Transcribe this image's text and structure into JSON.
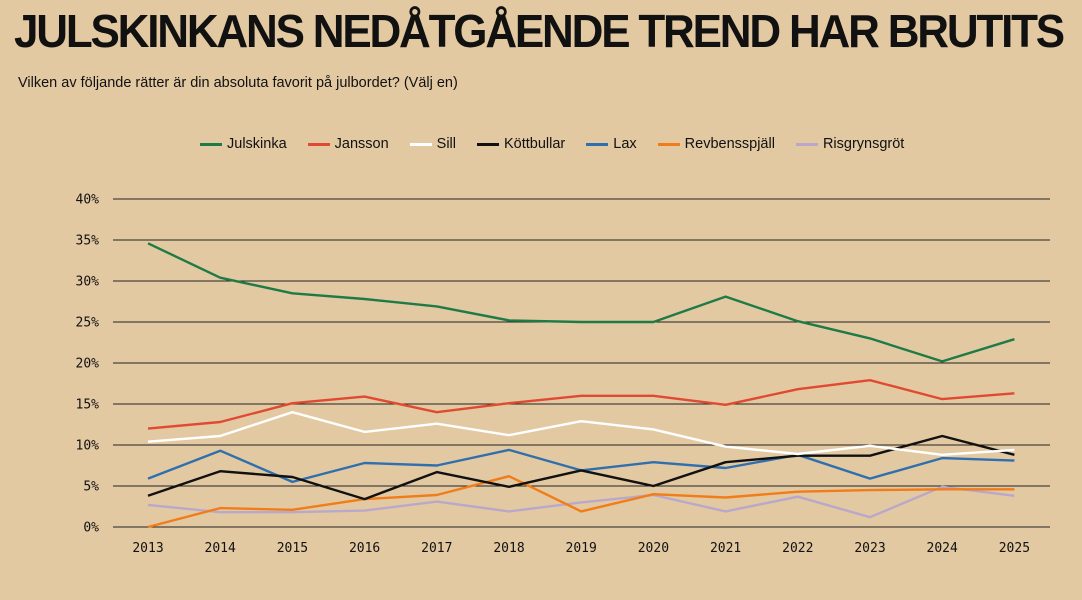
{
  "title": "JULSKINKANS NEDÅTGÅENDE TREND HAR BRUTITS",
  "subtitle": "Vilken av följande rätter är din absoluta favorit på julbordet? (Välj en)",
  "chart_data": {
    "type": "line",
    "title": "JULSKINKANS NEDÅTGÅENDE TREND HAR BRUTITS",
    "subtitle": "Vilken av följande rätter är din absoluta favorit på julbordet? (Välj en)",
    "x": [
      "2013",
      "2014",
      "2015",
      "2016",
      "2017",
      "2018",
      "2019",
      "2020",
      "2021",
      "2022",
      "2023",
      "2024",
      "2025"
    ],
    "ylim": [
      0,
      40
    ],
    "yticks": [
      0,
      5,
      10,
      15,
      20,
      25,
      30,
      35,
      40
    ],
    "ytick_labels": [
      "0%",
      "5%",
      "10%",
      "15%",
      "20%",
      "25%",
      "30%",
      "35%",
      "40%"
    ],
    "grid": "horizontal",
    "legend_position": "top",
    "series": [
      {
        "name": "Julskinka",
        "color": "#1E7B45",
        "values": [
          34.6,
          30.4,
          28.5,
          27.8,
          26.9,
          25.2,
          25.0,
          25.0,
          28.1,
          25.1,
          23.0,
          20.2,
          22.9
        ]
      },
      {
        "name": "Jansson",
        "color": "#E04A33",
        "values": [
          12.0,
          12.8,
          15.1,
          15.9,
          14.0,
          15.1,
          16.0,
          16.0,
          14.9,
          16.8,
          17.9,
          15.6,
          16.3
        ]
      },
      {
        "name": "Sill",
        "color": "#FFFFFF",
        "values": [
          10.4,
          11.1,
          14.0,
          11.6,
          12.6,
          11.2,
          12.9,
          11.9,
          9.8,
          8.9,
          9.9,
          8.8,
          9.4
        ]
      },
      {
        "name": "Köttbullar",
        "color": "#111111",
        "values": [
          3.8,
          6.8,
          6.1,
          3.4,
          6.7,
          4.9,
          6.9,
          5.0,
          7.9,
          8.7,
          8.7,
          11.1,
          8.8
        ]
      },
      {
        "name": "Lax",
        "color": "#2F6FAE",
        "values": [
          5.9,
          9.3,
          5.5,
          7.8,
          7.5,
          9.4,
          6.9,
          7.9,
          7.2,
          8.8,
          5.9,
          8.4,
          8.1
        ]
      },
      {
        "name": "Revbensspjäll",
        "color": "#F07D1A",
        "values": [
          0.0,
          2.3,
          2.1,
          3.4,
          3.9,
          6.2,
          1.9,
          4.0,
          3.6,
          4.3,
          4.5,
          4.6,
          4.6
        ]
      },
      {
        "name": "Risgrynsgröt",
        "color": "#B9A8C9",
        "values": [
          2.7,
          1.8,
          1.8,
          2.0,
          3.1,
          1.9,
          3.0,
          3.9,
          1.9,
          3.7,
          1.2,
          4.9,
          3.8
        ]
      }
    ]
  }
}
